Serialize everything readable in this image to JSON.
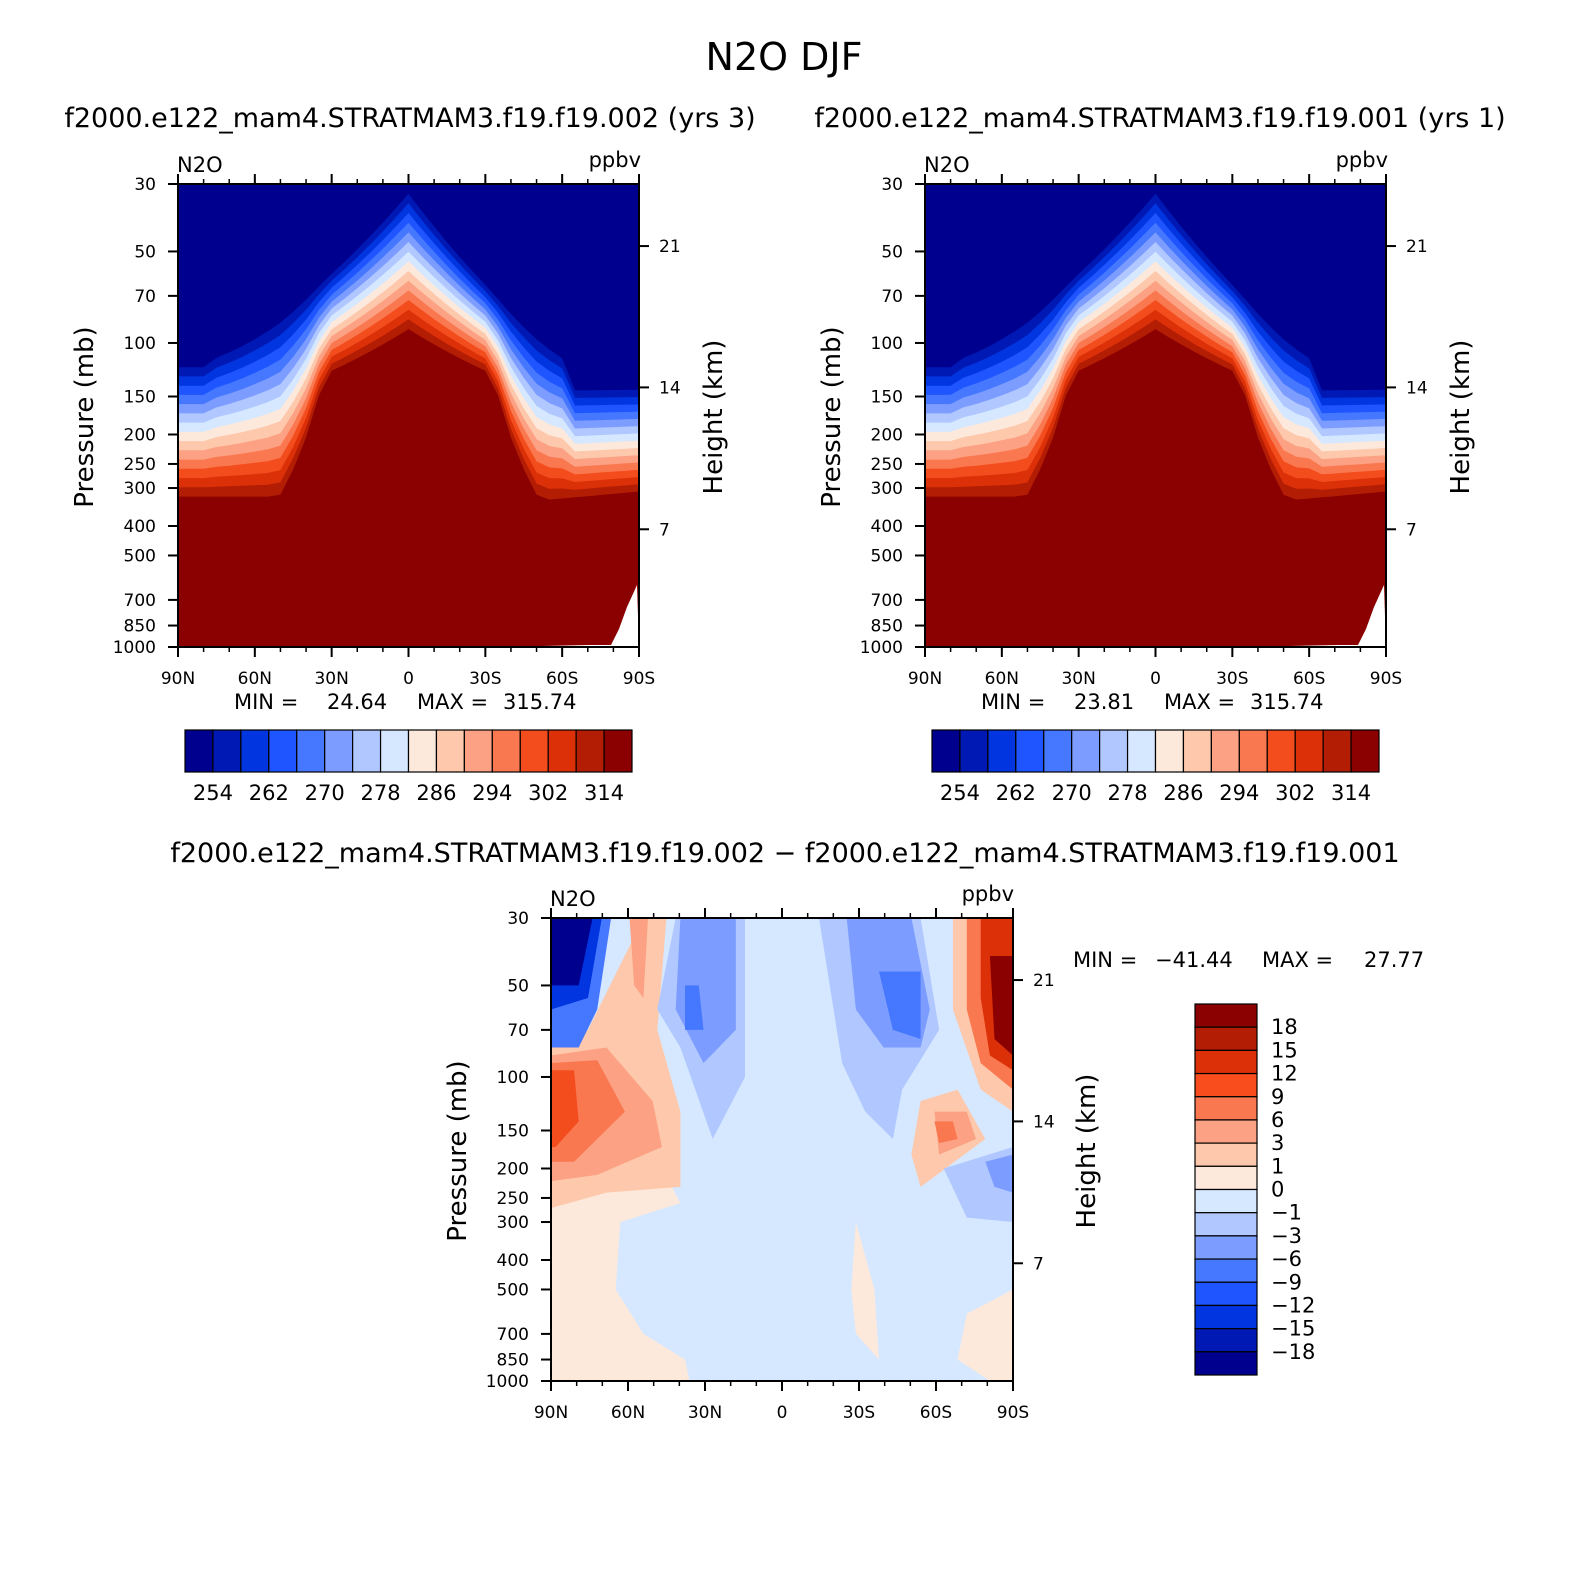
{
  "page_title": "N2O DJF",
  "chart_data": [
    {
      "type": "heatmap",
      "id": "panel1",
      "title": "f2000.e122_mam4.STRATMAM3.f19.f19.002 (yrs 3)",
      "variable": "N2O",
      "units": "ppbv",
      "ylabel": "Pressure (mb)",
      "ylabel_right": "Height (km)",
      "x_ticks": [
        "90N",
        "60N",
        "30N",
        "0",
        "30S",
        "60S",
        "90S"
      ],
      "y_ticks": [
        30,
        50,
        70,
        100,
        150,
        200,
        250,
        300,
        400,
        500,
        700,
        850,
        1000
      ],
      "y_ticks_right": [
        21,
        14,
        7
      ],
      "ylim": [
        1000,
        30
      ],
      "min_label": "MIN =",
      "min_value": "24.64",
      "max_label": "MAX =",
      "max_value": "315.74",
      "colorbar_labels": [
        "254",
        "262",
        "270",
        "278",
        "286",
        "294",
        "302",
        "314"
      ]
    },
    {
      "type": "heatmap",
      "id": "panel2",
      "title": "f2000.e122_mam4.STRATMAM3.f19.f19.001 (yrs 1)",
      "variable": "N2O",
      "units": "ppbv",
      "ylabel": "Pressure (mb)",
      "ylabel_right": "Height (km)",
      "x_ticks": [
        "90N",
        "60N",
        "30N",
        "0",
        "30S",
        "60S",
        "90S"
      ],
      "y_ticks": [
        30,
        50,
        70,
        100,
        150,
        200,
        250,
        300,
        400,
        500,
        700,
        850,
        1000
      ],
      "y_ticks_right": [
        21,
        14,
        7
      ],
      "ylim": [
        1000,
        30
      ],
      "min_label": "MIN =",
      "min_value": "23.81",
      "max_label": "MAX =",
      "max_value": "315.74",
      "colorbar_labels": [
        "254",
        "262",
        "270",
        "278",
        "286",
        "294",
        "302",
        "314"
      ]
    },
    {
      "type": "heatmap",
      "id": "panel3",
      "title": "f2000.e122_mam4.STRATMAM3.f19.f19.002 − f2000.e122_mam4.STRATMAM3.f19.f19.001",
      "variable": "N2O",
      "units": "ppbv",
      "ylabel": "Pressure (mb)",
      "ylabel_right": "Height (km)",
      "x_ticks": [
        "90N",
        "60N",
        "30N",
        "0",
        "30S",
        "60S",
        "90S"
      ],
      "y_ticks": [
        30,
        50,
        70,
        100,
        150,
        200,
        250,
        300,
        400,
        500,
        700,
        850,
        1000
      ],
      "y_ticks_right": [
        21,
        14,
        7
      ],
      "ylim": [
        1000,
        30
      ],
      "min_label": "MIN =",
      "min_value": "−41.44",
      "max_label": "MAX =",
      "max_value": "27.77",
      "colorbar_labels": [
        "18",
        "15",
        "12",
        "9",
        "6",
        "3",
        "1",
        "0",
        "−1",
        "−3",
        "−6",
        "−9",
        "−12",
        "−15",
        "−18"
      ]
    }
  ],
  "colors": {
    "abs_scale": [
      "#00008f",
      "#0019b4",
      "#0035e0",
      "#1e55ff",
      "#4678ff",
      "#7d9cff",
      "#b0c8ff",
      "#d6e8ff",
      "#fde9db",
      "#fdc8ab",
      "#fca183",
      "#fa7850",
      "#f34d1e",
      "#dc3008",
      "#b21d03",
      "#8b0000"
    ],
    "diff_scale": [
      "#8b0000",
      "#b21d03",
      "#dc3008",
      "#fa4d1e",
      "#fa7850",
      "#fca183",
      "#fdc8ab",
      "#fde9db",
      "#d6e8ff",
      "#b0c8ff",
      "#7d9cff",
      "#4678ff",
      "#1e55ff",
      "#0035e0",
      "#0019b4",
      "#00008f"
    ]
  }
}
